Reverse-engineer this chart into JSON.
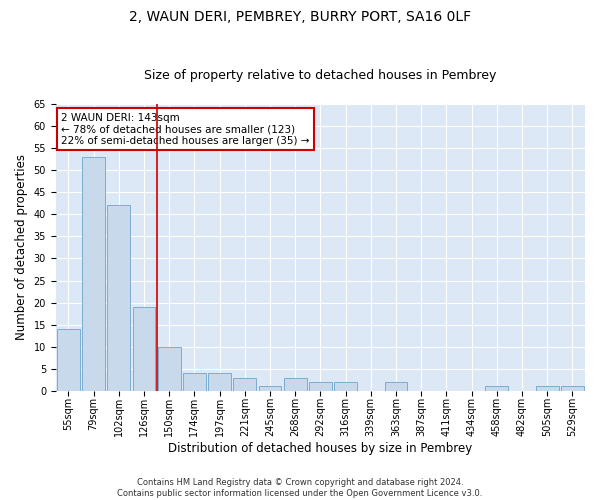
{
  "title": "2, WAUN DERI, PEMBREY, BURRY PORT, SA16 0LF",
  "subtitle": "Size of property relative to detached houses in Pembrey",
  "xlabel": "Distribution of detached houses by size in Pembrey",
  "ylabel": "Number of detached properties",
  "categories": [
    "55sqm",
    "79sqm",
    "102sqm",
    "126sqm",
    "150sqm",
    "174sqm",
    "197sqm",
    "221sqm",
    "245sqm",
    "268sqm",
    "292sqm",
    "316sqm",
    "339sqm",
    "363sqm",
    "387sqm",
    "411sqm",
    "434sqm",
    "458sqm",
    "482sqm",
    "505sqm",
    "529sqm"
  ],
  "values": [
    14,
    53,
    42,
    19,
    10,
    4,
    4,
    3,
    1,
    3,
    2,
    2,
    0,
    2,
    0,
    0,
    0,
    1,
    0,
    1,
    1
  ],
  "bar_color": "#c8d9ec",
  "bar_edge_color": "#7aadd4",
  "red_line_index": 4,
  "annotation_line1": "2 WAUN DERI: 143sqm",
  "annotation_line2": "← 78% of detached houses are smaller (123)",
  "annotation_line3": "22% of semi-detached houses are larger (35) →",
  "annotation_box_color": "white",
  "annotation_box_edge_color": "#cc0000",
  "red_line_color": "#cc0000",
  "ylim": [
    0,
    65
  ],
  "yticks": [
    0,
    5,
    10,
    15,
    20,
    25,
    30,
    35,
    40,
    45,
    50,
    55,
    60,
    65
  ],
  "background_color": "#dce8f5",
  "grid_color": "#c0d0e0",
  "footer_line1": "Contains HM Land Registry data © Crown copyright and database right 2024.",
  "footer_line2": "Contains public sector information licensed under the Open Government Licence v3.0.",
  "title_fontsize": 10,
  "subtitle_fontsize": 9,
  "tick_fontsize": 7,
  "label_fontsize": 8.5,
  "annotation_fontsize": 7.5,
  "footer_fontsize": 6
}
